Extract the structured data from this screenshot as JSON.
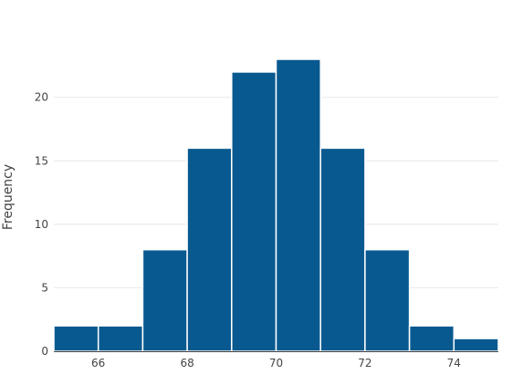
{
  "chart_data": {
    "type": "bar",
    "title": "",
    "xlabel": "",
    "ylabel": "Frequency",
    "bins": [
      {
        "start": 65,
        "end": 66,
        "count": 2
      },
      {
        "start": 66,
        "end": 67,
        "count": 2
      },
      {
        "start": 67,
        "end": 68,
        "count": 8
      },
      {
        "start": 68,
        "end": 69,
        "count": 16
      },
      {
        "start": 69,
        "end": 70,
        "count": 22
      },
      {
        "start": 70,
        "end": 71,
        "count": 23
      },
      {
        "start": 71,
        "end": 72,
        "count": 16
      },
      {
        "start": 72,
        "end": 73,
        "count": 8
      },
      {
        "start": 73,
        "end": 74,
        "count": 2
      },
      {
        "start": 74,
        "end": 75,
        "count": 1
      }
    ],
    "xlim": [
      65,
      75
    ],
    "ylim": [
      0,
      23
    ],
    "xticks": [
      66,
      68,
      70,
      72,
      74
    ],
    "yticks": [
      0,
      5,
      10,
      15,
      20
    ],
    "grid": true,
    "bar_color": "#08598f",
    "bar_edge_color": "#ffffff",
    "grid_color": "#e8e8e8",
    "text_color": "#444444"
  }
}
